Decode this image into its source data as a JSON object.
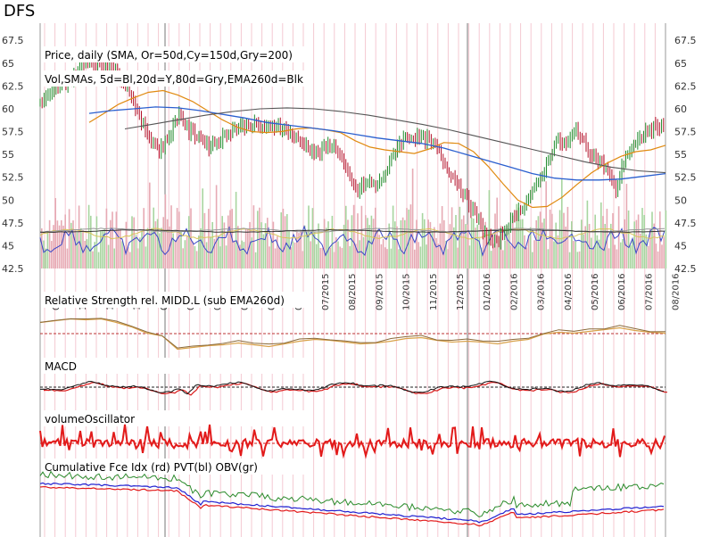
{
  "title": "DFS",
  "chart_data": [
    {
      "type": "line",
      "panel": "price",
      "label_lines": [
        "Price, daily (SMA, Or=50d,Cy=150d,Gry=200)",
        "Vol,SMAs, 5d=Bl,20d=Y,80d=Gry,EMA260d=Blk"
      ],
      "ylim": [
        42.5,
        68.5
      ],
      "yticks": [
        67.5,
        65,
        62.5,
        60,
        57.5,
        55,
        52.5,
        50,
        47.5,
        45,
        42.5
      ],
      "xtick_labels": [
        "09/2014",
        "10/2014",
        "11/2014",
        "12/2014",
        "01/2015",
        "02/2015",
        "03/2015",
        "04/2015",
        "05/2015",
        "06/2015",
        "07/2015",
        "08/2015",
        "09/2015",
        "10/2015",
        "11/2015",
        "12/2015",
        "01/2016",
        "02/2016",
        "03/2016",
        "04/2016",
        "05/2016",
        "06/2016",
        "07/2016",
        "08/2016"
      ],
      "xtick_display": [
        "09",
        "10",
        "11",
        "12",
        "01",
        "02",
        "03",
        "04",
        "05",
        "06",
        "07/2015",
        "08/2015",
        "09/2015",
        "10/2015",
        "11/2015",
        "12/2015",
        "01/2016",
        "02/2016",
        "03/2016",
        "04/2016",
        "05/2016",
        "06/2016",
        "07/2016",
        "08/2016"
      ],
      "series": [
        {
          "values": [
            60.5,
            61.5,
            62.5,
            63,
            64.5,
            65.5,
            64.5,
            65,
            63.5,
            62,
            59,
            57,
            55.5,
            57,
            59.5,
            57.5,
            57,
            56,
            56.5,
            57.5,
            58,
            58.3,
            58.1,
            57.8,
            58.2,
            57.5,
            56.5,
            55.8,
            55,
            56,
            55.5,
            52.5,
            51,
            52,
            51.5,
            53.5,
            56,
            57,
            56.8,
            56.6,
            55.5,
            53.5,
            52,
            50,
            48,
            46,
            45.2,
            47,
            48.5,
            50,
            51.5,
            54,
            56.5,
            56,
            57.8,
            55.8,
            54.5,
            53.5,
            51,
            55,
            56,
            57.5,
            58,
            58.3
          ]
        },
        {
          "values": [
            58.5,
            59.5,
            60.5,
            61.2,
            61.8,
            62,
            61.5,
            60.8,
            59.8,
            58.8,
            58,
            57.5,
            57.4,
            57.5,
            57.8,
            57.9,
            57.7,
            57.4,
            56.5,
            55.8,
            55.5,
            55.3,
            55.1,
            55.6,
            56.3,
            56.2,
            55.3,
            53.7,
            51.8,
            50,
            49.2,
            49.3,
            50.3,
            51.7,
            53,
            54,
            54.8,
            55.3,
            55.5,
            56
          ]
        },
        {
          "values": [
            59.5,
            59.8,
            60,
            60.2,
            60.1,
            59.8,
            59.4,
            59,
            58.5,
            58.2,
            57.9,
            57.6,
            57.2,
            56.8,
            56.5,
            56.2,
            55.7,
            55,
            54.3,
            53.6,
            52.9,
            52.4,
            52.2,
            52.2,
            52.3,
            52.6,
            52.9
          ]
        },
        {
          "values": [
            57.8,
            58.3,
            58.8,
            59.3,
            59.7,
            60,
            60.1,
            60,
            59.7,
            59.3,
            58.8,
            58.3,
            57.7,
            57,
            56.3,
            55.6,
            54.9,
            54.2,
            53.6,
            53.2,
            53
          ]
        }
      ]
    },
    {
      "type": "line",
      "panel": "rs",
      "label": "Relative Strength rel. MIDD.L (sub EMA260d)",
      "ylim": [
        -1,
        1
      ]
    },
    {
      "type": "line",
      "panel": "macd",
      "label": "MACD",
      "ylim": [
        -1.2,
        1.2
      ]
    },
    {
      "type": "line",
      "panel": "volosc",
      "label": "volumeOscillator",
      "ylim": [
        -1,
        1
      ]
    },
    {
      "type": "line",
      "panel": "cumfce",
      "label": "Cumulative Fce Idx (rd) PVT(bl) OBV(gr)",
      "ylim": [
        -1,
        1
      ]
    }
  ]
}
